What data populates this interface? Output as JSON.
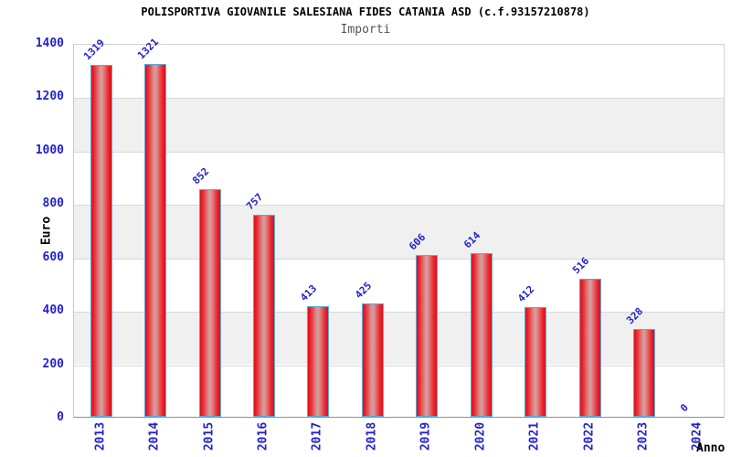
{
  "header": {
    "title": "POLISPORTIVA GIOVANILE SALESIANA FIDES CATANIA ASD (c.f.93157210878)",
    "subtitle": "Importi"
  },
  "chart_data": {
    "type": "bar",
    "title": "POLISPORTIVA GIOVANILE SALESIANA FIDES CATANIA ASD (c.f.93157210878)",
    "subtitle": "Importi",
    "xlabel": "Anno",
    "ylabel": "Euro",
    "categories": [
      "2013",
      "2014",
      "2015",
      "2016",
      "2017",
      "2018",
      "2019",
      "2020",
      "2021",
      "2022",
      "2023",
      "2024"
    ],
    "values": [
      1319,
      1321,
      852,
      757,
      413,
      425,
      606,
      614,
      412,
      516,
      328,
      0
    ],
    "ylim": [
      0,
      1400
    ],
    "yticks": [
      0,
      200,
      400,
      600,
      800,
      1000,
      1200,
      1400
    ],
    "grid": true,
    "band_ranges": [
      [
        200,
        400
      ],
      [
        600,
        800
      ],
      [
        1000,
        1200
      ]
    ],
    "legend_position": "none",
    "colors": {
      "label_blue": "#2222cc",
      "subtitle_gray": "#555555",
      "band_gray": "#f0f0f0",
      "gridline_gray": "#d9d9d9",
      "bar_edge_red": "#d6141c",
      "bar_bright_red": "#ee2129",
      "bar_center_light": "#d79898",
      "bar_border_blue": "#5ca7e0"
    }
  }
}
